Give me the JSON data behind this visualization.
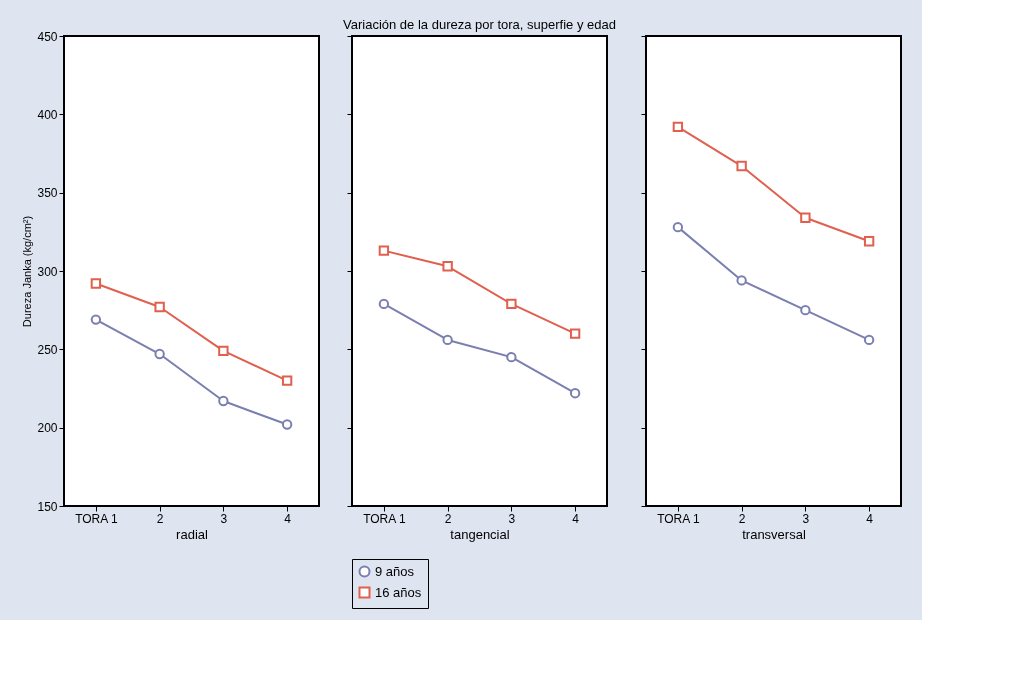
{
  "chart_data": [
    {
      "type": "line",
      "xlabel": "radial",
      "ylabel": "Dureza Janka (kg/cm²)",
      "categories": [
        "TORA 1",
        "2",
        "3",
        "4"
      ],
      "ylim": [
        150,
        450
      ],
      "yticks": [
        150,
        200,
        250,
        300,
        350,
        400,
        450
      ],
      "grid": false,
      "legend": false,
      "series": [
        {
          "color": "#7a7fb0",
          "marker": "circle",
          "values": [
            269,
            247,
            217,
            202
          ]
        },
        {
          "color": "#e0604f",
          "marker": "square",
          "values": [
            292,
            277,
            249,
            230
          ]
        }
      ]
    },
    {
      "type": "line",
      "title": "Variación de la dureza por tora, superfie y edad",
      "xlabel": "tangencial",
      "categories": [
        "TORA 1",
        "2",
        "3",
        "4"
      ],
      "ylim": [
        150,
        450
      ],
      "yticks": [
        150,
        200,
        250,
        300,
        350,
        400,
        450
      ],
      "grid": false,
      "legend": "bottom",
      "tick_labels": "x",
      "series": [
        {
          "name": "9 años",
          "color": "#7a7fb0",
          "marker": "circle",
          "values": [
            279,
            256,
            245,
            222
          ]
        },
        {
          "name": "16 años",
          "color": "#e0604f",
          "marker": "square",
          "values": [
            313,
            303,
            279,
            260
          ]
        }
      ]
    },
    {
      "type": "line",
      "xlabel": "transversal",
      "categories": [
        "TORA 1",
        "2",
        "3",
        "4"
      ],
      "ylim": [
        150,
        450
      ],
      "yticks": [
        150,
        200,
        250,
        300,
        350,
        400,
        450
      ],
      "grid": false,
      "legend": false,
      "tick_labels": "x",
      "series": [
        {
          "color": "#7a7fb0",
          "marker": "circle",
          "values": [
            328,
            294,
            275,
            256
          ]
        },
        {
          "color": "#e0604f",
          "marker": "square",
          "values": [
            392,
            367,
            334,
            319
          ]
        }
      ]
    }
  ]
}
